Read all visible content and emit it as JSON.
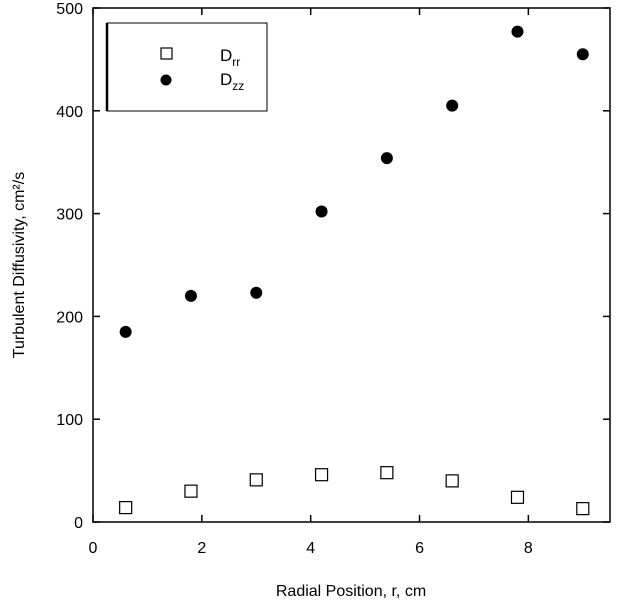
{
  "chart_data": {
    "type": "scatter",
    "xlabel": "Radial Position, r, cm",
    "ylabel": "Turbulent Diffusivity, cm²/s",
    "xlim": [
      0,
      9.5
    ],
    "ylim": [
      0,
      500
    ],
    "xticks": [
      0,
      2,
      4,
      6,
      8
    ],
    "yticks": [
      0,
      100,
      200,
      300,
      400,
      500
    ],
    "grid": false,
    "legend_position": "top-left",
    "series": [
      {
        "name": "D_rr",
        "marker": "open-square",
        "x": [
          0.6,
          1.8,
          3.0,
          4.2,
          5.4,
          6.6,
          7.8,
          9.0
        ],
        "y": [
          14,
          30,
          41,
          46,
          48,
          40,
          24,
          13
        ]
      },
      {
        "name": "D_zz",
        "marker": "filled-circle",
        "x": [
          0.6,
          1.8,
          3.0,
          4.2,
          5.4,
          6.6,
          7.8,
          9.0
        ],
        "y": [
          185,
          220,
          223,
          302,
          354,
          405,
          477,
          455
        ]
      }
    ],
    "legend": [
      {
        "main": "D",
        "sub": "rr"
      },
      {
        "main": "D",
        "sub": "zz"
      }
    ]
  }
}
